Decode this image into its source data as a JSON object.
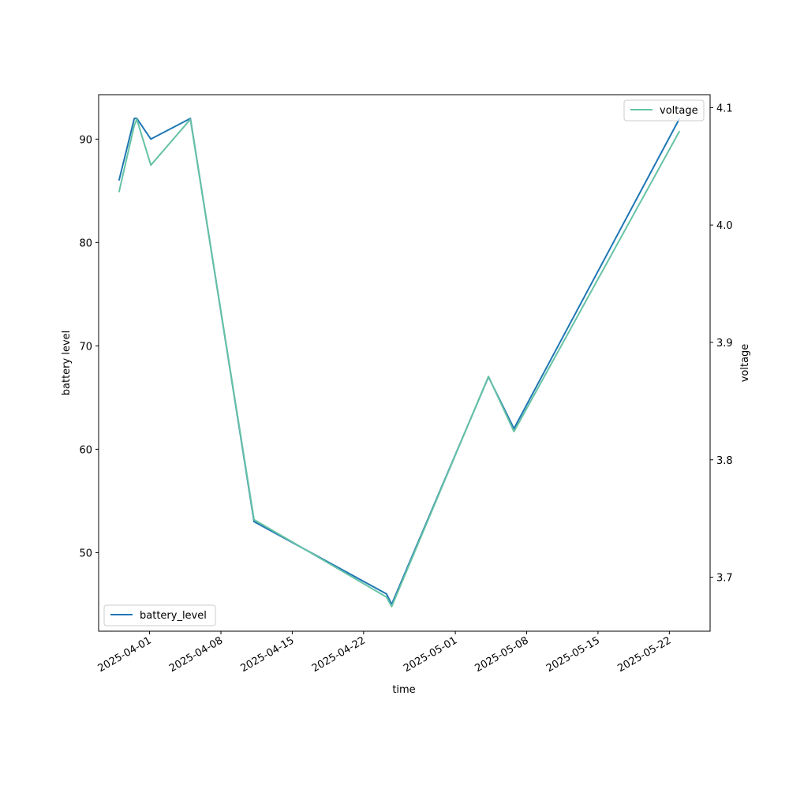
{
  "chart_data": {
    "type": "line",
    "x_type": "date",
    "xlabel": "time",
    "x_ticks": [
      "2025-04-01",
      "2025-04-08",
      "2025-04-15",
      "2025-04-22",
      "2025-05-01",
      "2025-05-08",
      "2025-05-15",
      "2025-05-22"
    ],
    "xlim": [
      "2025-03-27",
      "2025-05-26"
    ],
    "left_axis": {
      "label": "battery level",
      "ticks": [
        50,
        60,
        70,
        80,
        90
      ],
      "lim": [
        42.4,
        94.3
      ]
    },
    "right_axis": {
      "label": "voltage",
      "ticks": [
        "3.7",
        "3.8",
        "3.9",
        "4.0",
        "4.1"
      ],
      "lim": [
        3.654,
        4.111
      ]
    },
    "series": [
      {
        "name": "battery_level",
        "axis": "left",
        "color": "#1f77b4",
        "legend_position": "lower-left",
        "x": [
          "2025-03-29",
          "2025-03-30 12:00",
          "2025-03-30 18:00",
          "2025-04-01 03:00",
          "2025-04-05",
          "2025-04-11 06:00",
          "2025-04-24 06:00",
          "2025-04-24 18:00",
          "2025-05-04 06:00",
          "2025-05-06 18:00",
          "2025-05-23"
        ],
        "values": [
          86,
          92,
          92,
          90,
          92,
          53,
          46,
          45,
          67,
          62,
          92
        ]
      },
      {
        "name": "voltage",
        "axis": "right",
        "color": "#66c2a5",
        "legend_position": "upper-right",
        "x": [
          "2025-03-29",
          "2025-03-30 12:00",
          "2025-03-30 18:00",
          "2025-04-01 03:00",
          "2025-04-05",
          "2025-04-11 06:00",
          "2025-04-24 06:00",
          "2025-04-24 18:00",
          "2025-05-04 06:00",
          "2025-05-06 18:00",
          "2025-05-23"
        ],
        "values": [
          4.028,
          4.085,
          4.09,
          4.051,
          4.09,
          3.749,
          3.683,
          3.675,
          3.871,
          3.824,
          4.08
        ]
      }
    ],
    "grid": false
  }
}
